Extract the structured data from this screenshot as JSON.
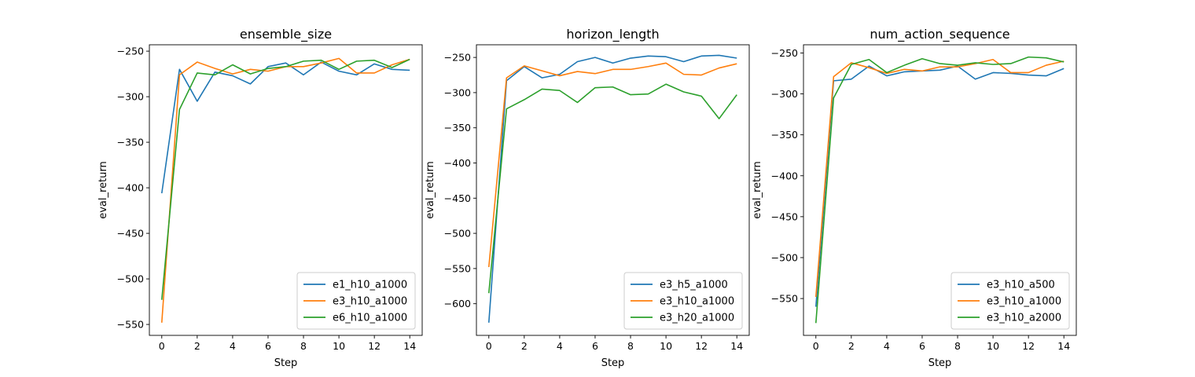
{
  "chart_data": [
    {
      "type": "line",
      "title": "ensemble_size",
      "xlabel": "Step",
      "ylabel": "eval_return",
      "xlim": [
        -0.7,
        14.7
      ],
      "ylim": [
        -562,
        -243
      ],
      "xticks": [
        0,
        2,
        4,
        6,
        8,
        10,
        12,
        14
      ],
      "yticks": [
        -550,
        -500,
        -450,
        -400,
        -350,
        -300,
        -250
      ],
      "legend_position": "lower right",
      "x": [
        0,
        1,
        2,
        3,
        4,
        5,
        6,
        7,
        8,
        9,
        10,
        11,
        12,
        13,
        14
      ],
      "series": [
        {
          "name": "e1_h10_a1000",
          "color": "#1f77b4",
          "values": [
            -406,
            -270,
            -305,
            -273,
            -277,
            -286,
            -267,
            -263,
            -276,
            -262,
            -272,
            -276,
            -264,
            -270,
            -271
          ]
        },
        {
          "name": "e3_h10_a1000",
          "color": "#ff7f0e",
          "values": [
            -548,
            -276,
            -262,
            -269,
            -275,
            -270,
            -272,
            -267,
            -267,
            -263,
            -258,
            -274,
            -274,
            -265,
            -259
          ]
        },
        {
          "name": "e6_h10_a1000",
          "color": "#2ca02c",
          "values": [
            -523,
            -314,
            -274,
            -276,
            -265,
            -275,
            -269,
            -267,
            -261,
            -260,
            -270,
            -261,
            -260,
            -268,
            -259
          ]
        }
      ]
    },
    {
      "type": "line",
      "title": "horizon_length",
      "xlabel": "Step",
      "ylabel": "eval_return",
      "xlim": [
        -0.7,
        14.7
      ],
      "ylim": [
        -645,
        -232
      ],
      "xticks": [
        0,
        2,
        4,
        6,
        8,
        10,
        12,
        14
      ],
      "yticks": [
        -600,
        -550,
        -500,
        -450,
        -400,
        -350,
        -300,
        -250
      ],
      "legend_position": "lower right",
      "x": [
        0,
        1,
        2,
        3,
        4,
        5,
        6,
        7,
        8,
        9,
        10,
        11,
        12,
        13,
        14
      ],
      "series": [
        {
          "name": "e3_h5_a1000",
          "color": "#1f77b4",
          "values": [
            -627,
            -283,
            -263,
            -279,
            -274,
            -256,
            -250,
            -258,
            -251,
            -248,
            -249,
            -256,
            -248,
            -247,
            -251
          ]
        },
        {
          "name": "e3_h10_a1000",
          "color": "#ff7f0e",
          "values": [
            -548,
            -279,
            -262,
            -269,
            -276,
            -270,
            -273,
            -267,
            -267,
            -263,
            -258,
            -274,
            -275,
            -265,
            -259
          ]
        },
        {
          "name": "e3_h20_a1000",
          "color": "#2ca02c",
          "values": [
            -585,
            -323,
            -310,
            -295,
            -297,
            -314,
            -293,
            -292,
            -303,
            -302,
            -288,
            -299,
            -305,
            -337,
            -303
          ]
        }
      ]
    },
    {
      "type": "line",
      "title": "num_action_sequence",
      "xlabel": "Step",
      "ylabel": "eval_return",
      "xlim": [
        -0.7,
        14.7
      ],
      "ylim": [
        -595,
        -240
      ],
      "xticks": [
        0,
        2,
        4,
        6,
        8,
        10,
        12,
        14
      ],
      "yticks": [
        -550,
        -500,
        -450,
        -400,
        -350,
        -300,
        -250
      ],
      "legend_position": "lower right",
      "x": [
        0,
        1,
        2,
        3,
        4,
        5,
        6,
        7,
        8,
        9,
        10,
        11,
        12,
        13,
        14
      ],
      "series": [
        {
          "name": "e3_h10_a500",
          "color": "#1f77b4",
          "values": [
            -560,
            -284,
            -282,
            -266,
            -278,
            -273,
            -272,
            -271,
            -266,
            -282,
            -274,
            -275,
            -277,
            -278,
            -269
          ]
        },
        {
          "name": "e3_h10_a1000",
          "color": "#ff7f0e",
          "values": [
            -548,
            -279,
            -262,
            -268,
            -275,
            -270,
            -272,
            -267,
            -267,
            -263,
            -258,
            -274,
            -274,
            -265,
            -260
          ]
        },
        {
          "name": "e3_h10_a2000",
          "color": "#2ca02c",
          "values": [
            -580,
            -305,
            -264,
            -258,
            -274,
            -265,
            -257,
            -263,
            -265,
            -262,
            -264,
            -263,
            -255,
            -256,
            -261
          ]
        }
      ]
    }
  ]
}
